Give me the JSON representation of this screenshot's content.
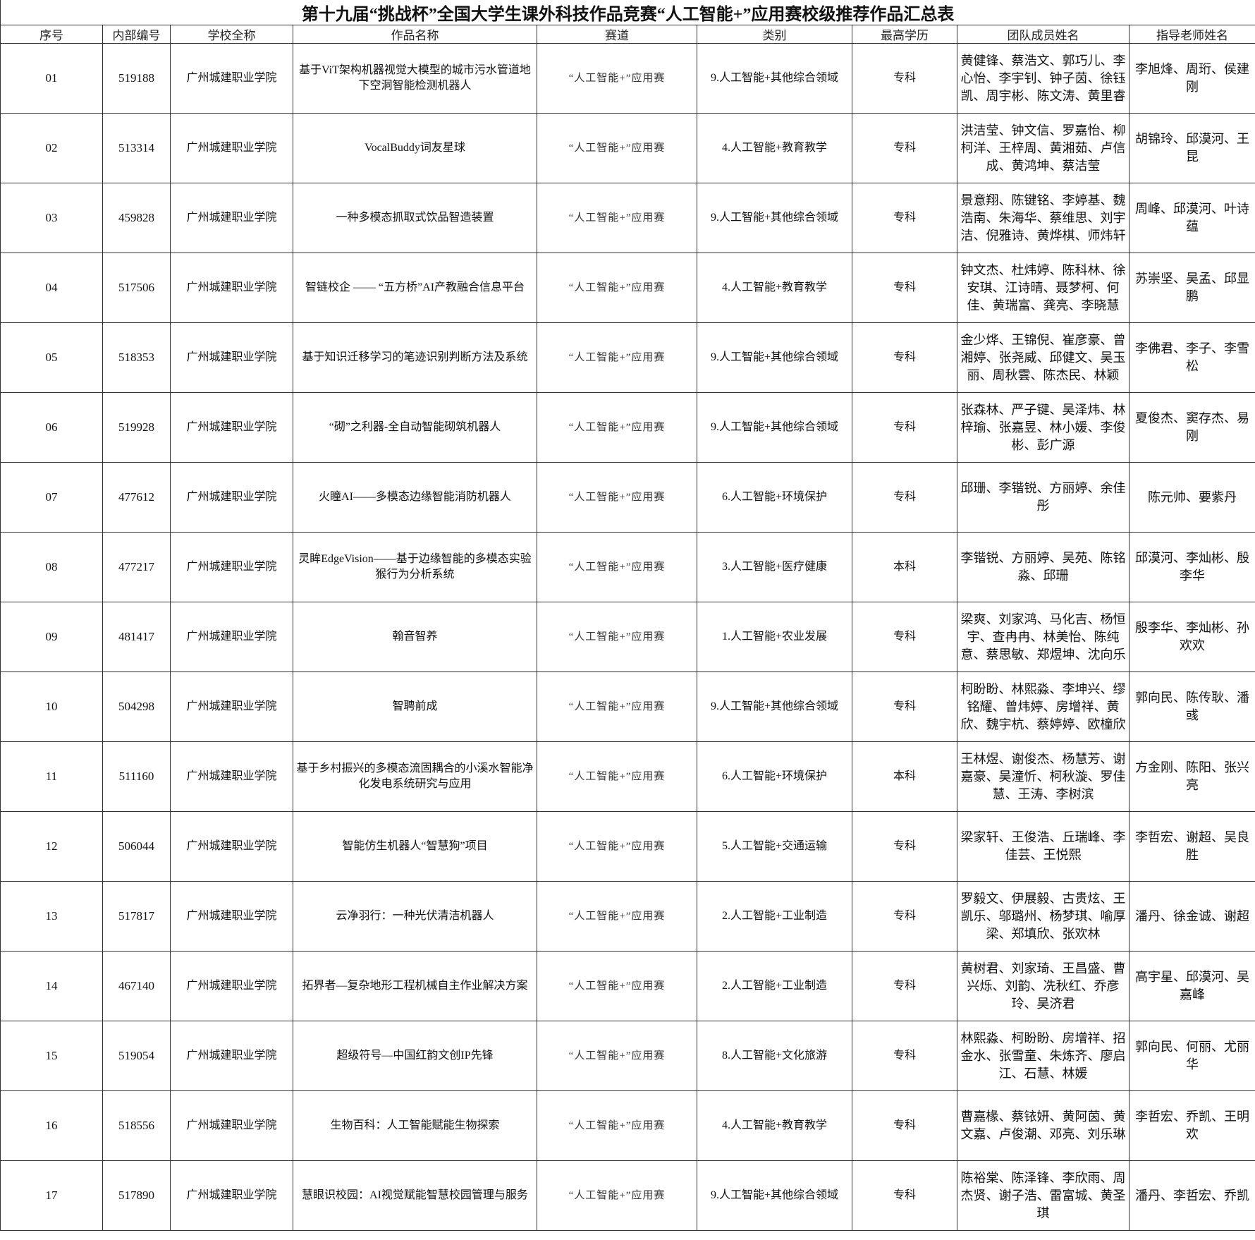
{
  "title": "第十九届“挑战杯”全国大学生课外科技作品竞赛“人工智能+”应用赛校级推荐作品汇总表",
  "headers": [
    "序号",
    "内部编号",
    "学校全称",
    "作品名称",
    "赛道",
    "类别",
    "最高学历",
    "团队成员姓名",
    "指导老师姓名"
  ],
  "rows": [
    [
      "01",
      "519188",
      "广州城建职业学院",
      "基于ViT架构机器视觉大模型的城市污水管道地下空洞智能检测机器人",
      "“人工智能+”应用赛",
      "9.人工智能+其他综合领域",
      "专科",
      "黄健锋、蔡浩文、郭巧儿、李心怡、李宇钊、钟子茵、徐钰凯、周宇彬、陈文涛、黄里睿",
      "李旭烽、周珩、侯建刚"
    ],
    [
      "02",
      "513314",
      "广州城建职业学院",
      "VocalBuddy词友星球",
      "“人工智能+”应用赛",
      "4.人工智能+教育教学",
      "专科",
      "洪洁莹、钟文信、罗嘉怡、柳柯洋、王梓周、黄湘茹、卢信成、黄鸿坤、蔡洁莹",
      "胡锦玲、邱漠河、王昆"
    ],
    [
      "03",
      "459828",
      "广州城建职业学院",
      "一种多模态抓取式饮品智造装置",
      "“人工智能+”应用赛",
      "9.人工智能+其他综合领域",
      "专科",
      "景意翔、陈键铭、李婷基、魏浩南、朱海华、蔡维思、刘宇洁、倪雅诗、黄烨棋、师炜轩",
      "周峰、邱漠河、叶诗蕴"
    ],
    [
      "04",
      "517506",
      "广州城建职业学院",
      "智链校企 —— “五方桥”AI产教融合信息平台",
      "“人工智能+”应用赛",
      "4.人工智能+教育教学",
      "专科",
      "钟文杰、杜炜婷、陈科林、徐安琪、江诗晴、聂梦柯、何佳、黄瑞富、龚亮、李晓慧",
      "苏崇坚、吴孟、邱显鹏"
    ],
    [
      "05",
      "518353",
      "广州城建职业学院",
      "基于知识迁移学习的笔迹识别判断方法及系统",
      "“人工智能+”应用赛",
      "9.人工智能+其他综合领域",
      "专科",
      "金少烨、王锦倪、崔彦豪、曾湘婷、张尧威、邱健文、吴玉丽、周秋雲、陈杰民、林颖",
      "李佛君、李子、李雪松"
    ],
    [
      "06",
      "519928",
      "广州城建职业学院",
      "“砌”之利器-全自动智能砌筑机器人",
      "“人工智能+”应用赛",
      "9.人工智能+其他综合领域",
      "专科",
      "张森林、严子键、吴泽炜、林梓瑜、张嘉昱、林小媛、李俊彬、彭广源",
      "夏俊杰、窦存杰、易刚"
    ],
    [
      "07",
      "477612",
      "广州城建职业学院",
      "火瞳AI——多模态边缘智能消防机器人",
      "“人工智能+”应用赛",
      "6.人工智能+环境保护",
      "专科",
      "邱珊、李锴锐、方丽婷、余佳彤",
      "陈元帅、要紫丹"
    ],
    [
      "08",
      "477217",
      "广州城建职业学院",
      "灵眸EdgeVision——基于边缘智能的多模态实验猴行为分析系统",
      "“人工智能+”应用赛",
      "3.人工智能+医疗健康",
      "本科",
      "李锴锐、方丽婷、吴苑、陈铭淼、邱珊",
      "邱漠河、李灿彬、殷李华"
    ],
    [
      "09",
      "481417",
      "广州城建职业学院",
      "翰音智养",
      "“人工智能+”应用赛",
      "1.人工智能+农业发展",
      "专科",
      "梁爽、刘家鸿、马化吉、杨恒宇、查冉冉、林美怡、陈纯意、蔡思敏、郑煜坤、沈向乐",
      "殷李华、李灿彬、孙欢欢"
    ],
    [
      "10",
      "504298",
      "广州城建职业学院",
      "智聘前成",
      "“人工智能+”应用赛",
      "9.人工智能+其他综合领域",
      "专科",
      "柯盼盼、林熙淼、李坤兴、缪铭耀、曾炜婷、房增祥、黄欣、魏宇杭、蔡婷婷、欧橦欣",
      "郭向民、陈传耿、潘彧"
    ],
    [
      "11",
      "511160",
      "广州城建职业学院",
      "基于乡村振兴的多模态流固耦合的小溪水智能净化发电系统研究与应用",
      "“人工智能+”应用赛",
      "6.人工智能+环境保护",
      "本科",
      "王林煜、谢俊杰、杨慧芳、谢嘉豪、吴潼忻、柯秋漩、罗佳慧、王涛、李树滨",
      "方金刚、陈阳、张兴亮"
    ],
    [
      "12",
      "506044",
      "广州城建职业学院",
      "智能仿生机器人“智慧狗”项目",
      "“人工智能+”应用赛",
      "5.人工智能+交通运输",
      "专科",
      "梁家轩、王俊浩、丘瑞峰、李佳芸、王悦熙",
      "李哲宏、谢超、吴良胜"
    ],
    [
      "13",
      "517817",
      "广州城建职业学院",
      "云净羽行：一种光伏清洁机器人",
      "“人工智能+”应用赛",
      "2.人工智能+工业制造",
      "专科",
      "罗毅文、伊展毅、古贵炫、王凯乐、邬璐州、杨梦琪、喻厚梁、郑填欣、张欢林",
      "潘丹、徐金诚、谢超"
    ],
    [
      "14",
      "467140",
      "广州城建职业学院",
      "拓界者—复杂地形工程机械自主作业解决方案",
      "“人工智能+”应用赛",
      "2.人工智能+工业制造",
      "专科",
      "黄树君、刘家琦、王昌盛、曹兴烁、刘韵、冼秋红、乔彦玲、吴济君",
      "高宇星、邱漠河、吴嘉峰"
    ],
    [
      "15",
      "519054",
      "广州城建职业学院",
      "超级符号—中国红韵文创IP先锋",
      "“人工智能+”应用赛",
      "8.人工智能+文化旅游",
      "专科",
      "林熙淼、柯盼盼、房增祥、招金水、张雪童、朱炼齐、廖启江、石慧、林媛",
      "郭向民、何丽、尤丽华"
    ],
    [
      "16",
      "518556",
      "广州城建职业学院",
      "生物百科：人工智能赋能生物探索",
      "“人工智能+”应用赛",
      "4.人工智能+教育教学",
      "专科",
      "曹嘉椽、蔡铱妍、黄阿茵、黄文嘉、卢俊潮、邓亮、刘乐琳",
      "李哲宏、乔凯、王明欢"
    ],
    [
      "17",
      "517890",
      "广州城建职业学院",
      "慧眼识校园：AI视觉赋能智慧校园管理与服务",
      "“人工智能+”应用赛",
      "9.人工智能+其他综合领域",
      "专科",
      "陈裕棠、陈泽锋、李欣雨、周杰贤、谢子浩、雷富城、黄圣琪",
      "潘丹、李哲宏、乔凯"
    ]
  ]
}
